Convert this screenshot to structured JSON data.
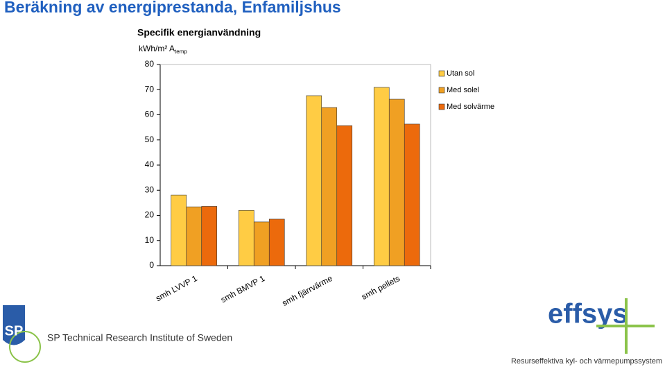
{
  "slide": {
    "title": "Beräkning av energiprestanda, Enfamiljshus"
  },
  "chart_data": {
    "type": "bar",
    "title": "Specifik energianvändning",
    "y_label": "kWh/m² A",
    "y_label_sub": "temp",
    "categories": [
      "smh LVVP 1",
      "smh BMVP 1",
      "smh fjärrvärme",
      "smh pellets"
    ],
    "series": [
      {
        "name": "Utan sol",
        "color": "#ffcc44",
        "values": [
          28.1,
          22.0,
          67.6,
          70.9
        ]
      },
      {
        "name": "Med solel",
        "color": "#f0a023",
        "values": [
          23.4,
          17.4,
          62.9,
          66.2
        ]
      },
      {
        "name": "Med solvärme",
        "color": "#ec6a0c",
        "values": [
          23.6,
          18.5,
          55.7,
          56.3
        ]
      }
    ],
    "ylim": [
      0,
      80
    ],
    "yticks": [
      0,
      10,
      20,
      30,
      40,
      50,
      60,
      70,
      80
    ],
    "grid": false,
    "legend": "right"
  },
  "footer": {
    "sp_logo": "SP",
    "sp_name": "SP Technical Research Institute of Sweden",
    "effsys_logo": "effsys",
    "effsys_tagline": "Resurseffektiva kyl- och värmepumpssystem"
  }
}
